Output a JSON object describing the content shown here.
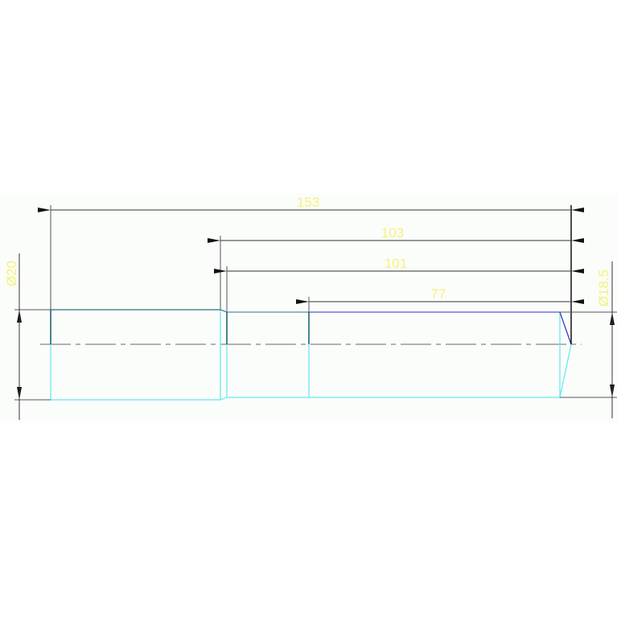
{
  "drawing": {
    "dimensions": {
      "overall_length": "153",
      "length_b": "103",
      "length_c": "101",
      "length_d": "77",
      "diameter_large": "Ø20",
      "diameter_small": "Ø18.5"
    },
    "colors": {
      "background": "#fbfdfb",
      "dimension_text": "#f5f27a",
      "part_outline": "#5fe9f0",
      "part_top_edge": "#2a6f76",
      "chamfer_edge": "#4a3cc8",
      "dimension_lines": "#333333"
    }
  }
}
